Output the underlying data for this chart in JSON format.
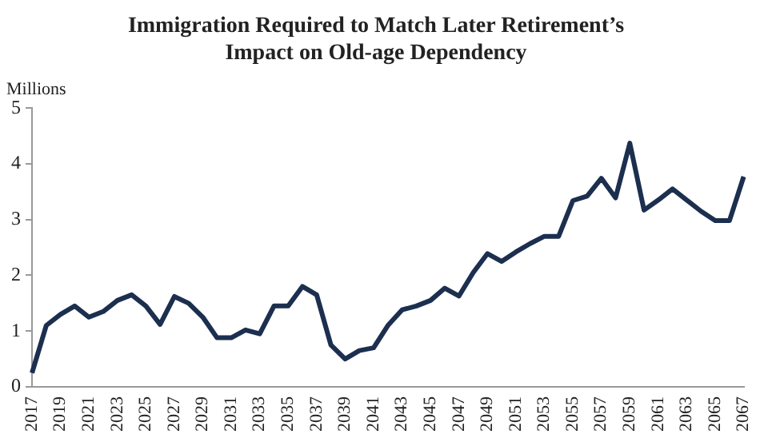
{
  "chart_data": {
    "type": "line",
    "title": "Immigration Required to Match Later Retirement’s\nImpact on Old-age Dependency",
    "ylabel": "Millions",
    "categories": [
      "2017",
      null,
      "2019",
      null,
      "2021",
      null,
      "2023",
      null,
      "2025",
      null,
      "2027",
      null,
      "2029",
      null,
      "2031",
      null,
      "2033",
      null,
      "2035",
      null,
      "2037",
      null,
      "2039",
      null,
      "2041",
      null,
      "2043",
      null,
      "2045",
      null,
      "2047",
      null,
      "2049",
      null,
      "2051",
      null,
      "2053",
      null,
      "2055",
      null,
      "2057",
      null,
      "2059",
      null,
      "2061",
      null,
      "2063",
      null,
      "2065",
      null,
      "2067"
    ],
    "series": [
      {
        "color": "#1c2f4f",
        "values": [
          0.25,
          1.1,
          1.3,
          1.45,
          1.25,
          1.35,
          1.55,
          1.65,
          1.45,
          1.12,
          1.62,
          1.5,
          1.25,
          0.88,
          0.88,
          1.02,
          0.95,
          1.45,
          1.45,
          1.8,
          1.65,
          0.75,
          0.5,
          0.65,
          0.7,
          1.1,
          1.38,
          1.45,
          1.55,
          1.77,
          1.63,
          2.05,
          2.39,
          2.25,
          2.42,
          2.57,
          2.7,
          2.7,
          3.34,
          3.42,
          3.74,
          3.39,
          4.37,
          3.17,
          3.35,
          3.55,
          3.35,
          3.15,
          2.98,
          2.98,
          3.77
        ]
      }
    ],
    "ylim": [
      0,
      5
    ],
    "yticks": [
      0,
      1,
      2,
      3,
      4,
      5
    ],
    "grid": false,
    "legend": false,
    "marker": "none",
    "line_style": "solid"
  }
}
